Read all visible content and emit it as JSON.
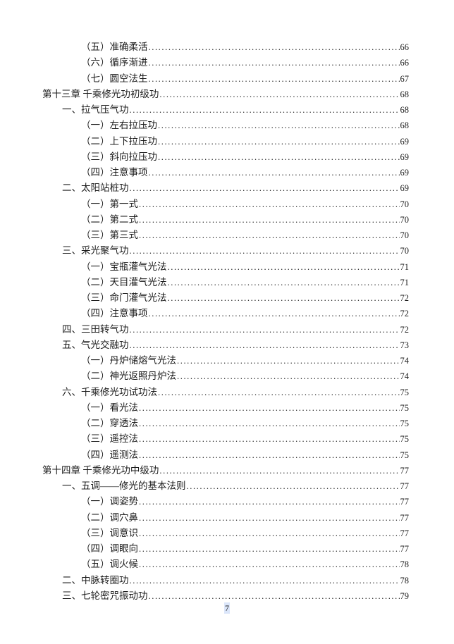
{
  "page": {
    "footer_page_number": "7"
  },
  "toc": {
    "entries": [
      {
        "level": "sub",
        "title": "（五）准确柔活",
        "page": "66"
      },
      {
        "level": "sub",
        "title": "（六）循序渐进",
        "page": "66"
      },
      {
        "level": "sub",
        "title": "（七）圆空法生",
        "page": "67"
      },
      {
        "level": "chapter",
        "title": "第十三章 千乘修光功初级功",
        "page": "68"
      },
      {
        "level": "item",
        "title": "一、拉气压气功",
        "page": "68"
      },
      {
        "level": "sub",
        "title": "（一）左右拉压功",
        "page": "68"
      },
      {
        "level": "sub",
        "title": "（二）上下拉压功",
        "page": "69"
      },
      {
        "level": "sub",
        "title": "（三）斜向拉压功",
        "page": "69"
      },
      {
        "level": "sub",
        "title": "（四）注意事项",
        "page": "69"
      },
      {
        "level": "item",
        "title": "二、太阳站桩功",
        "page": "69"
      },
      {
        "level": "sub",
        "title": "（一）第一式",
        "page": "70"
      },
      {
        "level": "sub",
        "title": "（二）第二式",
        "page": "70"
      },
      {
        "level": "sub",
        "title": "（三）第三式",
        "page": "70"
      },
      {
        "level": "item",
        "title": "三、采光聚气功",
        "page": "70"
      },
      {
        "level": "sub",
        "title": "（一）宝瓶灌气光法",
        "page": "71"
      },
      {
        "level": "sub",
        "title": "（二）天目灌气光法",
        "page": "71"
      },
      {
        "level": "sub",
        "title": "（三）命门灌气光法",
        "page": "72"
      },
      {
        "level": "sub",
        "title": "（四）注意事项",
        "page": "72"
      },
      {
        "level": "item",
        "title": "四、三田转气功",
        "page": "72"
      },
      {
        "level": "item",
        "title": "五、气光交融功",
        "page": "73"
      },
      {
        "level": "sub",
        "title": "（一）丹炉储熔气光法",
        "page": "74"
      },
      {
        "level": "sub",
        "title": "（二）神光返照丹炉法",
        "page": "74"
      },
      {
        "level": "item",
        "title": "六、千乘修光功试功法",
        "page": "75"
      },
      {
        "level": "sub",
        "title": "（一）看光法",
        "page": "75"
      },
      {
        "level": "sub",
        "title": "（二）穿透法",
        "page": "75"
      },
      {
        "level": "sub",
        "title": "（三）遥控法",
        "page": "75"
      },
      {
        "level": "sub",
        "title": "（四）遥测法",
        "page": "75"
      },
      {
        "level": "chapter",
        "title": "第十四章 千乘修光功中级功",
        "page": "77"
      },
      {
        "level": "item",
        "title": "一、五调——修光的基本法则",
        "page": "77"
      },
      {
        "level": "sub",
        "title": "（一）调姿势",
        "page": "77"
      },
      {
        "level": "sub",
        "title": "（二）调穴鼻",
        "page": "77"
      },
      {
        "level": "sub",
        "title": "（三）调意识",
        "page": "77"
      },
      {
        "level": "sub",
        "title": "（四）调眼向",
        "page": "77"
      },
      {
        "level": "sub",
        "title": "（五）调火候",
        "page": "78"
      },
      {
        "level": "item",
        "title": "二、中脉转圈功",
        "page": "78"
      },
      {
        "level": "item",
        "title": "三、七轮密咒振动功",
        "page": "79"
      }
    ]
  }
}
